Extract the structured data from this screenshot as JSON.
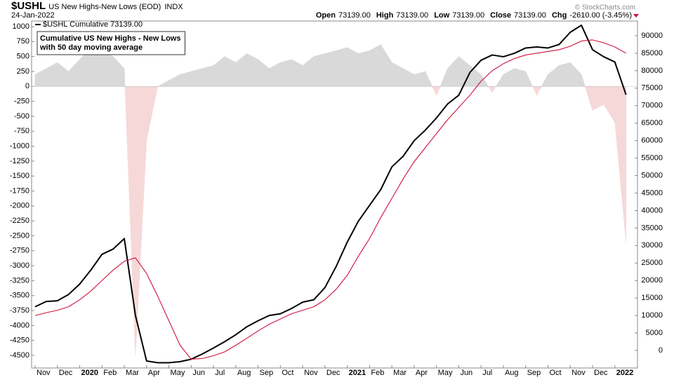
{
  "chart_data": {
    "type": "line",
    "title": "$USHL",
    "subtitle": "US New Highs-New Lows (EOD)",
    "exchange": "INDX",
    "date": "24-Jan-2022",
    "quote": [
      {
        "label": "Open",
        "value": "73139.00"
      },
      {
        "label": "High",
        "value": "73139.00"
      },
      {
        "label": "Low",
        "value": "73139.00"
      },
      {
        "label": "Close",
        "value": "73139.00"
      },
      {
        "label": "Chg",
        "value": "-2610.00 (-3.45%)"
      }
    ],
    "annotation": [
      "Cumulative US New Highs - New Lows",
      "with 50 day moving average"
    ],
    "watermark": "© StockCharts.com",
    "categories": [
      "Nov",
      null,
      "Dec",
      null,
      "2020",
      null,
      "Feb",
      null,
      "Mar",
      null,
      "Apr",
      null,
      "May",
      null,
      "Jun",
      null,
      "Jul",
      null,
      "Aug",
      null,
      "Sep",
      null,
      "Oct",
      null,
      "Nov",
      null,
      "Dec",
      null,
      "2021",
      null,
      "Feb",
      null,
      "Mar",
      null,
      "Apr",
      null,
      "May",
      null,
      "Jun",
      null,
      "Jul",
      null,
      "Aug",
      null,
      "Sep",
      null,
      "Oct",
      null,
      "Nov",
      null,
      "Dec",
      null,
      "2022",
      null
    ],
    "ylim": [
      -4711,
      1094
    ],
    "yticks": [
      1000,
      750,
      500,
      250,
      0,
      -250,
      -500,
      -750,
      -1000,
      -1250,
      -1500,
      -1750,
      -2000,
      -2250,
      -2500,
      -2750,
      -3000,
      -3250,
      -3500,
      -3750,
      -4000,
      -4250,
      -4500
    ],
    "y2lim": [
      -5011,
      94209
    ],
    "y2ticks": [
      90000,
      85000,
      80000,
      75000,
      70000,
      65000,
      60000,
      55000,
      50000,
      45000,
      40000,
      35000,
      30000,
      25000,
      20000,
      15000,
      10000,
      5000,
      0
    ],
    "grid": false,
    "series": [
      {
        "style": "area",
        "axis": "y",
        "color": "#d9d9d9",
        "negative_color": "#f6d8d8",
        "values": [
          200,
          300,
          400,
          250,
          450,
          650,
          600,
          500,
          300,
          -4500,
          -900,
          0,
          100,
          200,
          250,
          300,
          350,
          500,
          400,
          550,
          450,
          300,
          400,
          450,
          350,
          500,
          550,
          600,
          650,
          550,
          600,
          700,
          400,
          300,
          200,
          250,
          -150,
          300,
          500,
          350,
          200,
          -100,
          200,
          300,
          250,
          -150,
          200,
          350,
          400,
          200,
          -400,
          -300,
          -600,
          -2600
        ]
      },
      {
        "name": "$USHL Cumulative 73139.00",
        "style": "line",
        "axis": "y2",
        "color": "#000000",
        "values": [
          12500,
          14000,
          14200,
          16000,
          19000,
          23000,
          27500,
          29000,
          32000,
          10000,
          -3000,
          -3500,
          -3500,
          -3200,
          -2500,
          -1000,
          700,
          2500,
          4500,
          6800,
          8500,
          10000,
          10500,
          12000,
          13800,
          14500,
          18000,
          24000,
          31000,
          37000,
          41500,
          46000,
          52500,
          55500,
          60000,
          63000,
          66500,
          70500,
          73000,
          79500,
          83000,
          84500,
          84000,
          85000,
          86500,
          86800,
          86500,
          87500,
          91000,
          93000,
          86000,
          84000,
          82500,
          73139
        ]
      },
      {
        "style": "line",
        "axis": "y2",
        "color": "#d0103a",
        "values": [
          10000,
          10800,
          11500,
          12500,
          14500,
          17000,
          20000,
          23000,
          25500,
          26500,
          22000,
          15500,
          8500,
          1500,
          -2500,
          -2300,
          -1500,
          -400,
          1500,
          3500,
          5600,
          7500,
          9000,
          10500,
          11500,
          12500,
          14500,
          17500,
          21500,
          27000,
          32000,
          38000,
          43500,
          49000,
          54000,
          58000,
          62000,
          66000,
          69500,
          73000,
          77000,
          80000,
          82000,
          83500,
          84500,
          85000,
          85500,
          86000,
          87000,
          88500,
          88800,
          88000,
          86800,
          85000
        ]
      }
    ]
  }
}
